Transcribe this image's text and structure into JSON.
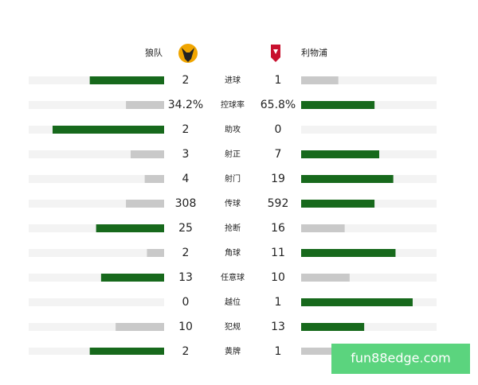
{
  "header": {
    "home": "狼队",
    "away": "利物浦"
  },
  "rows": [
    {
      "label": "进球",
      "home": 2,
      "away": 1
    },
    {
      "label": "控球率",
      "home": 34.2,
      "away": 65.8,
      "home_label": "34.2%",
      "away_label": "65.8%"
    },
    {
      "label": "助攻",
      "home": 2,
      "away": 0
    },
    {
      "label": "射正",
      "home": 3,
      "away": 7
    },
    {
      "label": "射门",
      "home": 4,
      "away": 19
    },
    {
      "label": "传球",
      "home": 308,
      "away": 592
    },
    {
      "label": "抢断",
      "home": 25,
      "away": 16
    },
    {
      "label": "角球",
      "home": 2,
      "away": 11
    },
    {
      "label": "任意球",
      "home": 13,
      "away": 10
    },
    {
      "label": "越位",
      "home": 0,
      "away": 1
    },
    {
      "label": "犯规",
      "home": 10,
      "away": 13
    },
    {
      "label": "黄牌",
      "home": 2,
      "away": 1
    }
  ],
  "watermark": "fun88edge.com"
}
